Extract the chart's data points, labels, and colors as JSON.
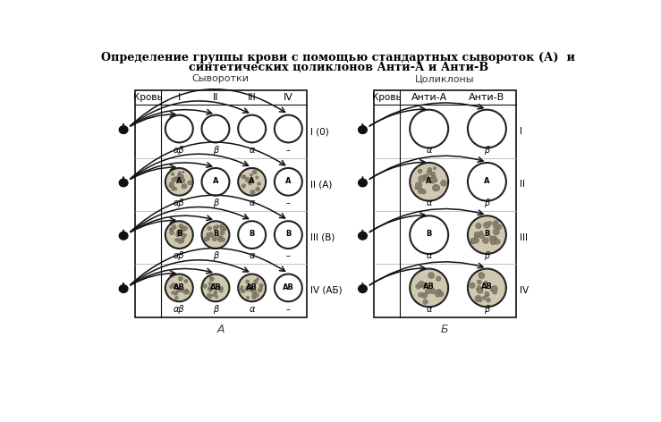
{
  "title_line1": "Определение группы крови с помощью стандартных сывороток (А)  и",
  "title_line2": "синтетических цоликлонов Анти-А и Анти-В",
  "left_panel": {
    "header": "Сыворотки",
    "col_krov": "Кровь",
    "cols": [
      "I",
      "II",
      "III",
      "IV"
    ],
    "rows": [
      {
        "label": "I (0)",
        "agglutinated": [
          false,
          false,
          false,
          false
        ],
        "sublabels": [
          "αβ",
          "β",
          "α",
          "–"
        ],
        "letters": [
          "",
          "",
          "",
          ""
        ]
      },
      {
        "label": "II (A)",
        "agglutinated": [
          true,
          false,
          true,
          false
        ],
        "sublabels": [
          "αβ",
          "β",
          "α",
          "–"
        ],
        "letters": [
          "A",
          "A",
          "A",
          "A"
        ]
      },
      {
        "label": "III (В)",
        "agglutinated": [
          true,
          true,
          false,
          false
        ],
        "sublabels": [
          "αβ",
          "β",
          "α",
          "–"
        ],
        "letters": [
          "B",
          "B",
          "B",
          "B"
        ]
      },
      {
        "label": "IV (АБ)",
        "agglutinated": [
          true,
          true,
          true,
          false
        ],
        "sublabels": [
          "αβ",
          "β",
          "α",
          "–"
        ],
        "letters": [
          "AB",
          "AB",
          "AB",
          "AB"
        ]
      }
    ]
  },
  "right_panel": {
    "header": "Цоликлоны",
    "col_krov": "Кровь",
    "cols": [
      "Анти-А",
      "Анти-В"
    ],
    "rows": [
      {
        "label": "I",
        "agglutinated": [
          false,
          false
        ],
        "sublabels": [
          "α",
          "β"
        ],
        "letters": [
          "",
          ""
        ]
      },
      {
        "label": "II",
        "agglutinated": [
          true,
          false
        ],
        "sublabels": [
          "α",
          "β"
        ],
        "letters": [
          "A",
          "A"
        ]
      },
      {
        "label": "III",
        "agglutinated": [
          false,
          true
        ],
        "sublabels": [
          "α",
          "β"
        ],
        "letters": [
          "B",
          "B"
        ]
      },
      {
        "label": "IV",
        "agglutinated": [
          true,
          true
        ],
        "sublabels": [
          "α",
          "β"
        ],
        "letters": [
          "AB",
          "AB"
        ]
      }
    ]
  },
  "bottom_label_left": "А",
  "bottom_label_right": "Б"
}
